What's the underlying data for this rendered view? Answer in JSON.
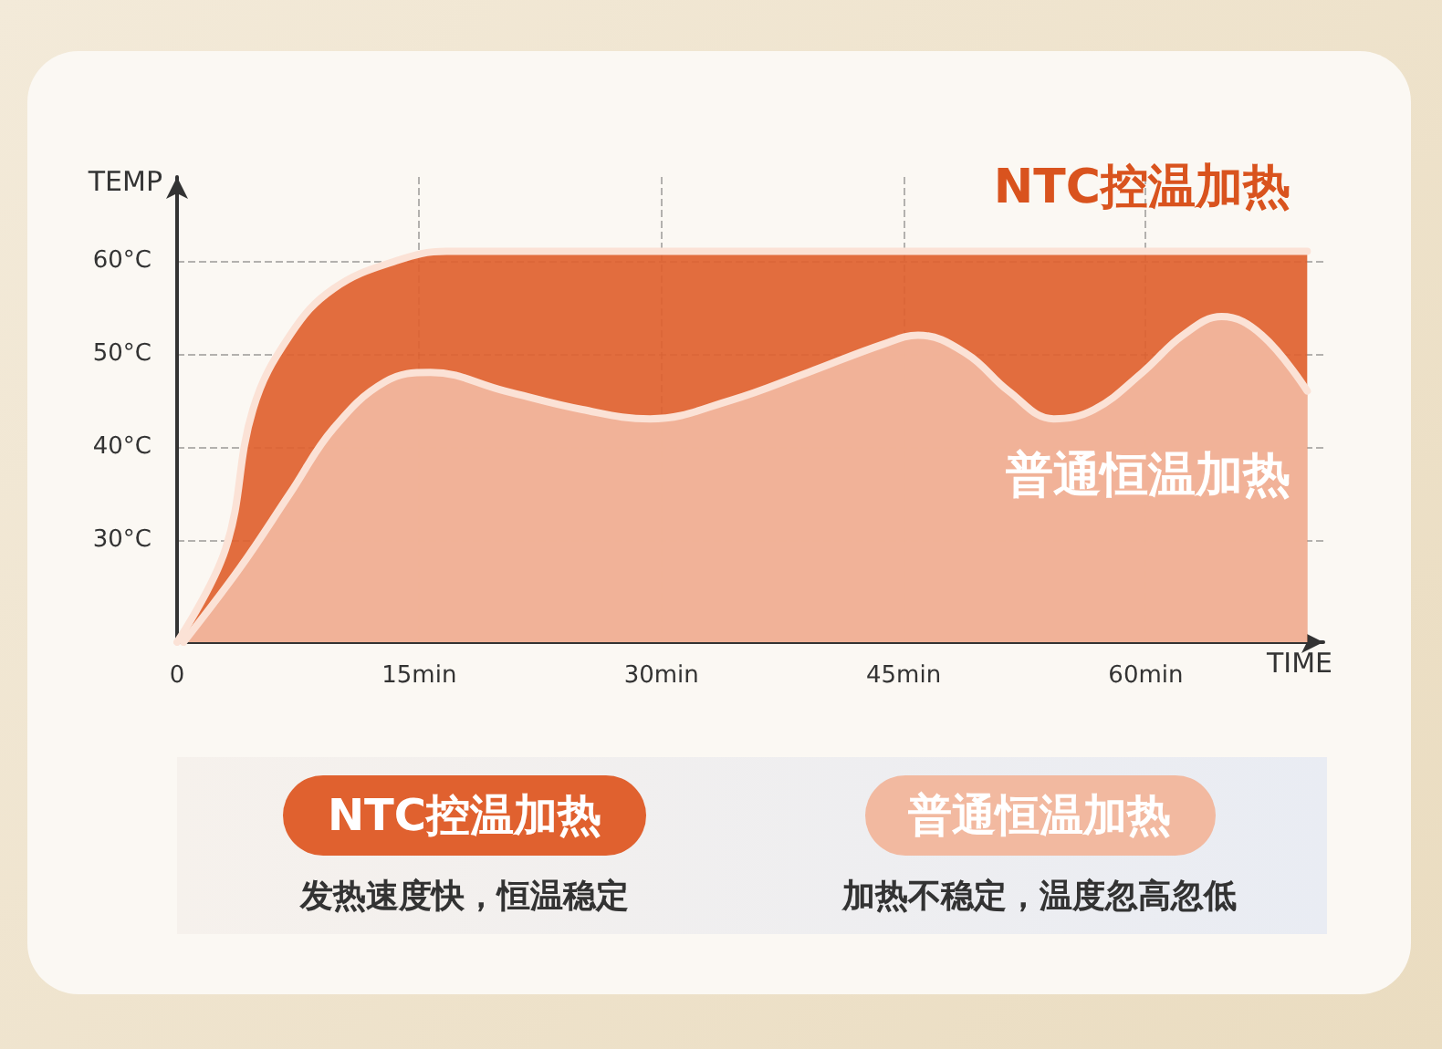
{
  "chart_data": {
    "type": "area",
    "xlabel": "TIME",
    "ylabel": "TEMP",
    "xlim": [
      0,
      71
    ],
    "ylim": [
      19,
      69
    ],
    "xticks": [
      0,
      {
        "value": 15,
        "label": "15min"
      },
      {
        "value": 30,
        "label": "30min"
      },
      {
        "value": 45,
        "label": "45min"
      },
      {
        "value": 60,
        "label": "60min"
      }
    ],
    "yticks": [
      {
        "value": 30,
        "label": "30°C"
      },
      {
        "value": 40,
        "label": "40°C"
      },
      {
        "value": 50,
        "label": "50°C"
      },
      {
        "value": 60,
        "label": "60°C"
      }
    ],
    "grid": true,
    "legend": false,
    "marker": "none",
    "line_style": "solid",
    "series": [
      {
        "name": "NTC控温加热",
        "color": "#e0612f",
        "x": [
          0,
          3,
          4.7,
          7,
          9.7,
          13.6,
          16.7,
          30,
          45,
          60,
          70
        ],
        "values": [
          19,
          29,
          44,
          52,
          57,
          60,
          61,
          61,
          61,
          61,
          61
        ]
      },
      {
        "name": "普通恒温加热",
        "color": "#f2b9a0",
        "x": [
          0.4,
          3.9,
          7,
          9.7,
          12.9,
          15.7,
          20.3,
          25.1,
          29.3,
          34.3,
          39.1,
          43.7,
          45.9,
          48.9,
          51.5,
          54.3,
          56.8,
          59.8,
          62.3,
          64.7,
          67.2,
          70
        ],
        "values": [
          19,
          27,
          35,
          42,
          47,
          48,
          46,
          44,
          43,
          45,
          48,
          51,
          52,
          50,
          46,
          43,
          44,
          48,
          52,
          54,
          52,
          46
        ]
      }
    ],
    "annotations": [
      "发热速度快，恒温稳定",
      "加热不稳定，温度忽高忽低"
    ]
  }
}
